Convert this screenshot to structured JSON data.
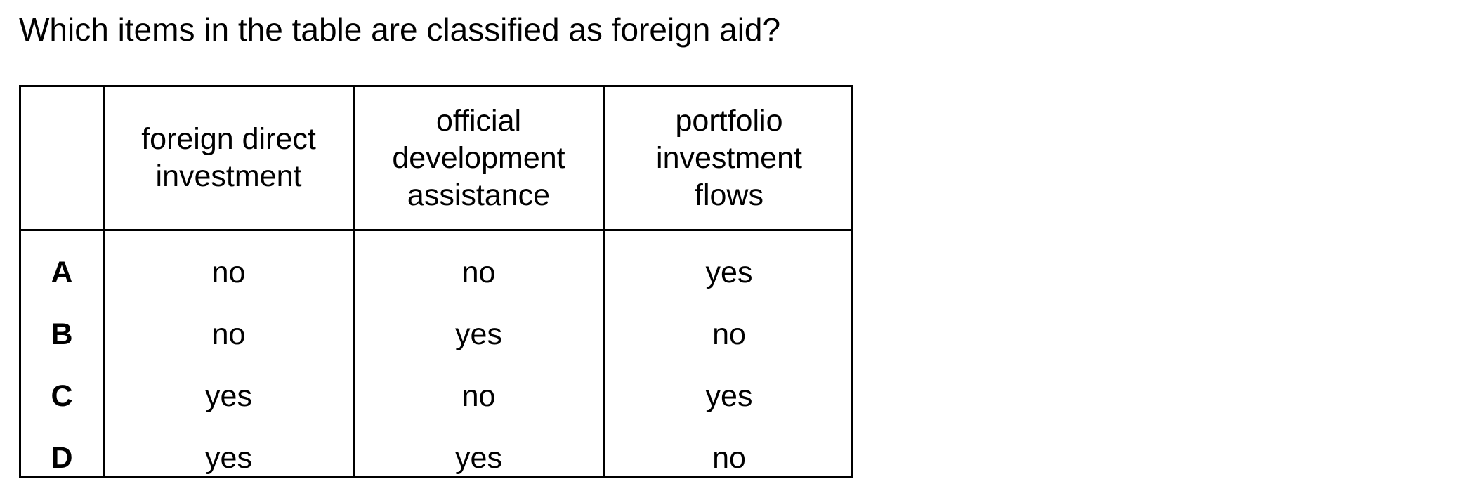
{
  "question": "Which items in the table are classified as foreign aid?",
  "table": {
    "headers": [
      "",
      "foreign direct\ninvestment",
      "official\ndevelopment\nassistance",
      "portfolio\ninvestment\nflows"
    ],
    "rows": [
      {
        "label": "A",
        "cells": [
          "no",
          "no",
          "yes"
        ]
      },
      {
        "label": "B",
        "cells": [
          "no",
          "yes",
          "no"
        ]
      },
      {
        "label": "C",
        "cells": [
          "yes",
          "no",
          "yes"
        ]
      },
      {
        "label": "D",
        "cells": [
          "yes",
          "yes",
          "no"
        ]
      }
    ]
  }
}
